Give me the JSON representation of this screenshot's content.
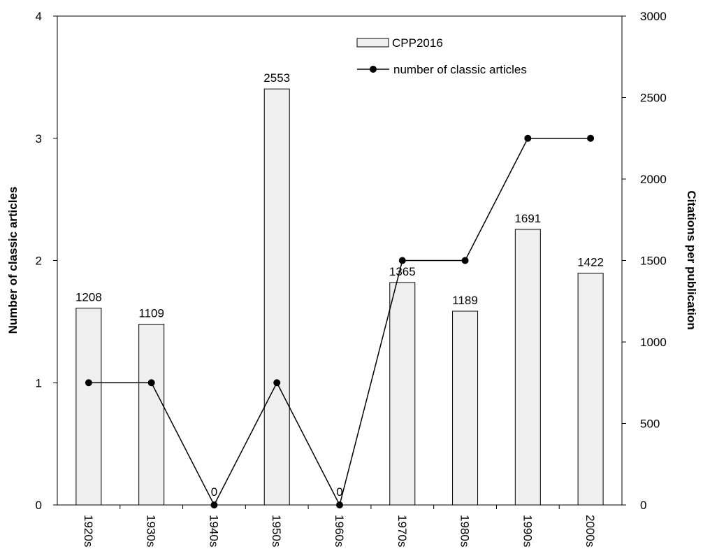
{
  "chart_data": {
    "type": "bar+line",
    "categories": [
      "1920s",
      "1930s",
      "1940s",
      "1950s",
      "1960s",
      "1970s",
      "1980s",
      "1990s",
      "2000s"
    ],
    "series": [
      {
        "name": "CPP2016",
        "type": "bar",
        "axis": "right",
        "values": [
          1208,
          1109,
          null,
          2553,
          null,
          1365,
          1189,
          1691,
          1422
        ],
        "data_labels": [
          "1208",
          "1109",
          "0",
          "2553",
          "0",
          "1365",
          "1189",
          "1691",
          "1422"
        ]
      },
      {
        "name": "number of classic articles",
        "type": "line",
        "axis": "left",
        "values": [
          1,
          1,
          0,
          1,
          0,
          2,
          2,
          3,
          3
        ]
      }
    ],
    "ylabel_left": "Number of classic  articles",
    "ylabel_right": "Citations per publication",
    "ylim_left": [
      0,
      4
    ],
    "ylim_right": [
      0,
      3000
    ],
    "yticks_left": [
      "0",
      "1",
      "2",
      "3",
      "4"
    ],
    "yticks_right": [
      "0",
      "500",
      "1000",
      "1500",
      "2000",
      "2500",
      "3000"
    ],
    "grid": false,
    "legend_position": "top-right",
    "colors": {
      "bar_fill": "#efefef",
      "bar_stroke": "#000000",
      "line": "#000000"
    }
  }
}
